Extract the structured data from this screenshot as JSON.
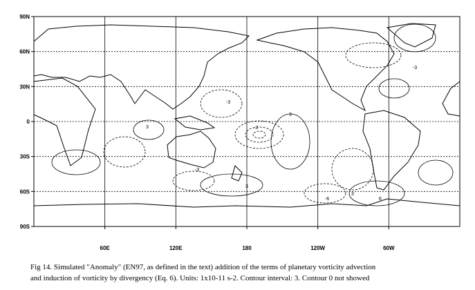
{
  "axes": {
    "lat_labels": [
      "90N",
      "60N",
      "30N",
      "0",
      "30S",
      "60S",
      "90S"
    ],
    "lon_labels": [
      "60E",
      "120E",
      "180",
      "120W",
      "60W"
    ]
  },
  "contour_labels": [
    "3",
    "-3",
    "3",
    "-3",
    "6",
    "-3",
    "3",
    "-6",
    "3",
    "-3"
  ],
  "caption": [
    "Fig 14. Simulated \"Anomaly\" (EN97, as defined in the text) addition of the terms of planetary vorticity advection",
    "and induction of vorticity by divergency (Eq. 6).  Units: 1x10-11 s-2. Contour interval: 3. Contour 0 not showed"
  ]
}
